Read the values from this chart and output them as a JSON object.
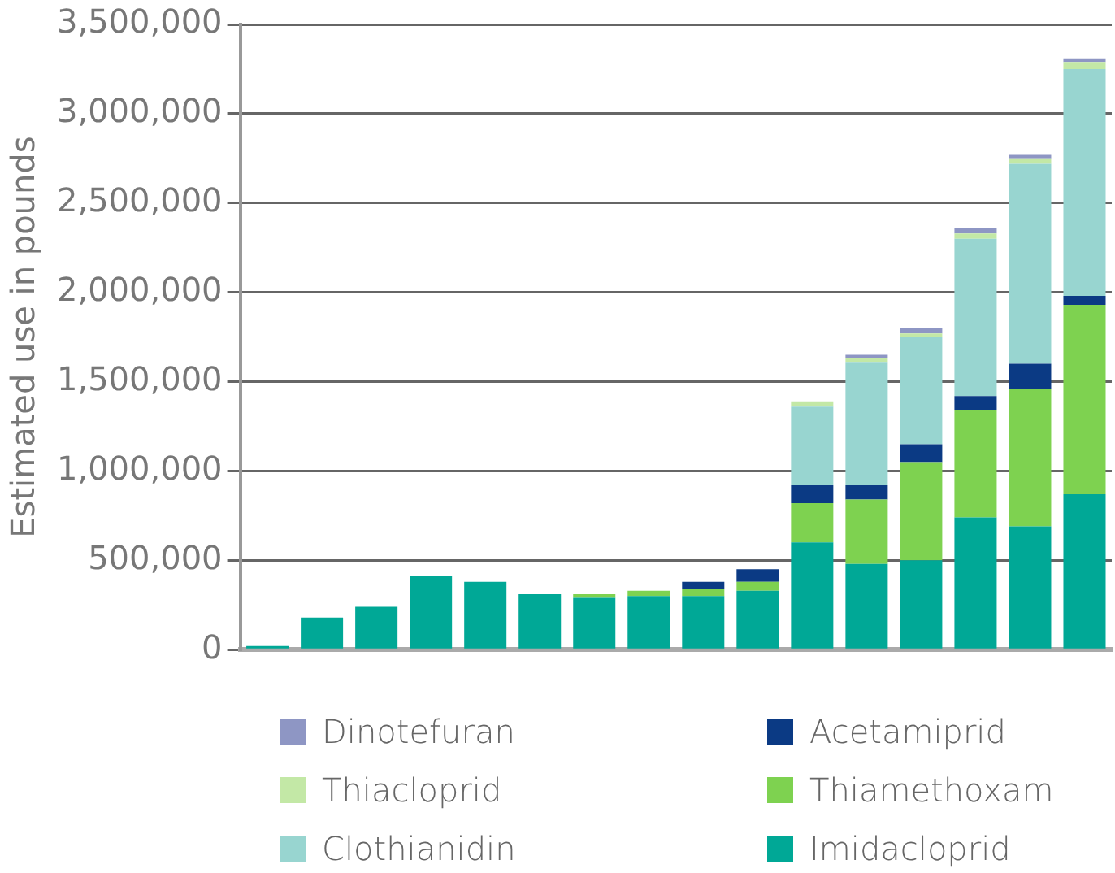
{
  "chart_data": {
    "type": "bar",
    "stacked": true,
    "ylabel": "Estimated use in pounds",
    "categories": [
      null,
      null,
      null,
      null,
      null,
      null,
      null,
      null,
      null,
      null,
      null,
      null,
      null,
      null,
      null,
      null
    ],
    "series": [
      {
        "name": "Imidacloprid",
        "color": "#00a896",
        "values": [
          20000,
          180000,
          240000,
          410000,
          380000,
          310000,
          290000,
          300000,
          300000,
          330000,
          600000,
          480000,
          500000,
          740000,
          690000,
          870000
        ]
      },
      {
        "name": "Thiamethoxam",
        "color": "#7ed250",
        "values": [
          null,
          null,
          null,
          null,
          null,
          null,
          20000,
          30000,
          40000,
          50000,
          220000,
          360000,
          550000,
          600000,
          770000,
          1060000
        ]
      },
      {
        "name": "Acetamiprid",
        "color": "#0b3a84",
        "values": [
          null,
          null,
          null,
          null,
          null,
          null,
          null,
          null,
          40000,
          70000,
          100000,
          80000,
          100000,
          80000,
          140000,
          50000
        ]
      },
      {
        "name": "Clothianidin",
        "color": "#98d5d0",
        "values": [
          null,
          null,
          null,
          null,
          null,
          null,
          null,
          null,
          null,
          null,
          440000,
          690000,
          600000,
          880000,
          1120000,
          1270000
        ]
      },
      {
        "name": "Thiacloprid",
        "color": "#c3e8a6",
        "values": [
          null,
          null,
          null,
          null,
          null,
          null,
          null,
          null,
          null,
          null,
          30000,
          20000,
          20000,
          30000,
          30000,
          40000
        ]
      },
      {
        "name": "Dinotefuran",
        "color": "#8e96c4",
        "values": [
          null,
          null,
          null,
          null,
          null,
          null,
          null,
          null,
          null,
          null,
          null,
          20000,
          30000,
          30000,
          20000,
          20000
        ]
      }
    ],
    "ylim": [
      0,
      3500000
    ],
    "yticks": [
      0,
      {
        "value": 500000,
        "label": "500,000"
      },
      {
        "value": 1000000,
        "label": "1,000,000"
      },
      {
        "value": 1500000,
        "label": "1,500,000"
      },
      {
        "value": 2000000,
        "label": "2,000,000"
      },
      {
        "value": 2500000,
        "label": "2,500,000"
      },
      {
        "value": 3000000,
        "label": "3,000,000"
      },
      {
        "value": 3500000,
        "label": "3,500,000"
      }
    ],
    "grid": "y",
    "legend": "bottom"
  }
}
